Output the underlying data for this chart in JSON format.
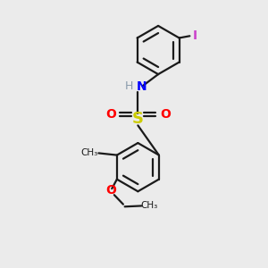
{
  "bg_color": "#ebebeb",
  "bond_color": "#1a1a1a",
  "lw": 1.6,
  "atom_colors": {
    "N": "#0000ff",
    "S": "#cccc00",
    "O": "#ff0000",
    "I": "#cc44cc",
    "H": "#8899aa",
    "C": "#1a1a1a"
  },
  "ring_r": 0.62,
  "xlim": [
    -2.8,
    2.8
  ],
  "ylim": [
    -3.6,
    3.2
  ]
}
